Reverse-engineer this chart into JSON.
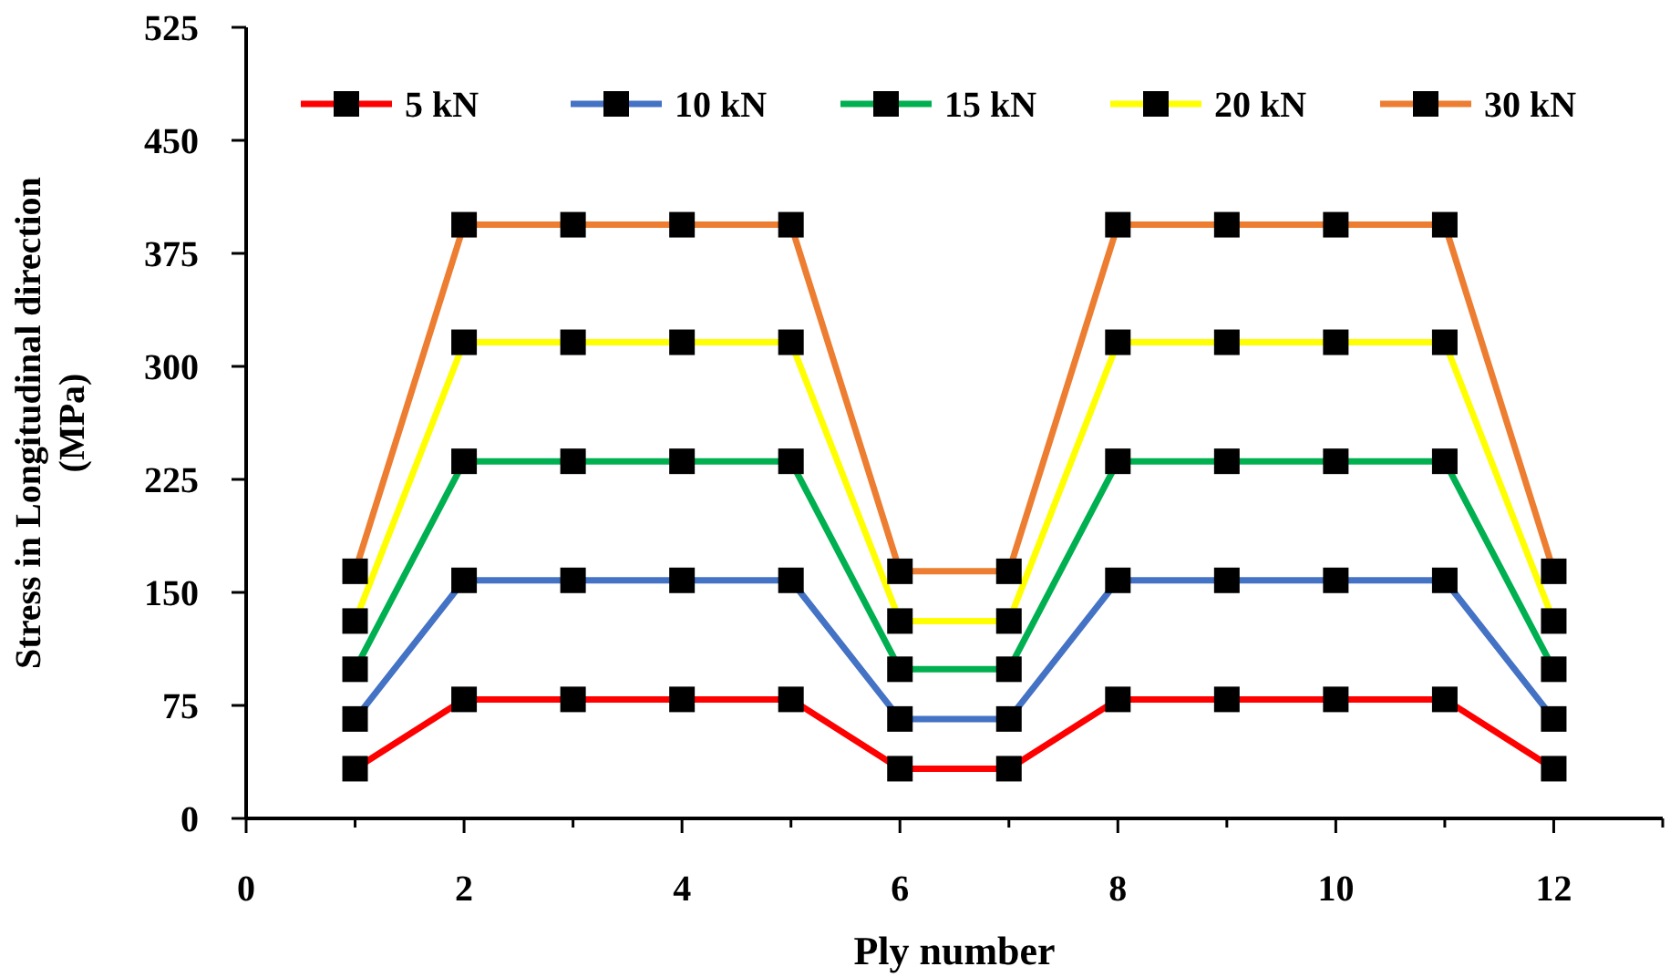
{
  "chart_data": {
    "type": "line",
    "xlabel": "Ply number",
    "ylabel": "Stress in Longitudinal direction (MPa)",
    "x": [
      1,
      2,
      3,
      4,
      5,
      6,
      7,
      8,
      9,
      10,
      11,
      12
    ],
    "series": [
      {
        "name": "5 kN",
        "color": "#ff0000",
        "values": [
          33,
          79,
          79,
          79,
          79,
          33,
          33,
          79,
          79,
          79,
          79,
          33
        ]
      },
      {
        "name": "10 kN",
        "color": "#4472c4",
        "values": [
          66,
          158,
          158,
          158,
          158,
          66,
          66,
          158,
          158,
          158,
          158,
          66
        ]
      },
      {
        "name": "15 kN",
        "color": "#00b050",
        "values": [
          99,
          237,
          237,
          237,
          237,
          99,
          99,
          237,
          237,
          237,
          237,
          99
        ]
      },
      {
        "name": "20 kN",
        "color": "#ffff00",
        "values": [
          131,
          316,
          316,
          316,
          316,
          131,
          131,
          316,
          316,
          316,
          316,
          131
        ]
      },
      {
        "name": "30 kN",
        "color": "#ed7d31",
        "values": [
          164,
          394,
          394,
          394,
          394,
          164,
          164,
          394,
          394,
          394,
          394,
          164
        ]
      }
    ],
    "xlim": [
      0,
      13
    ],
    "xticks": [
      0,
      {
        "value": 1,
        "label": null
      },
      2,
      {
        "value": 3,
        "label": null
      },
      4,
      {
        "value": 5,
        "label": null
      },
      6,
      {
        "value": 7,
        "label": null
      },
      8,
      {
        "value": 9,
        "label": null
      },
      10,
      {
        "value": 11,
        "label": null
      },
      12,
      {
        "value": 13,
        "label": null
      }
    ],
    "ylim": [
      0,
      525
    ],
    "yticks": [
      0,
      75,
      150,
      225,
      300,
      375,
      450,
      525
    ],
    "grid": false,
    "legend": "top",
    "marker": "square",
    "line_style": "solid"
  }
}
